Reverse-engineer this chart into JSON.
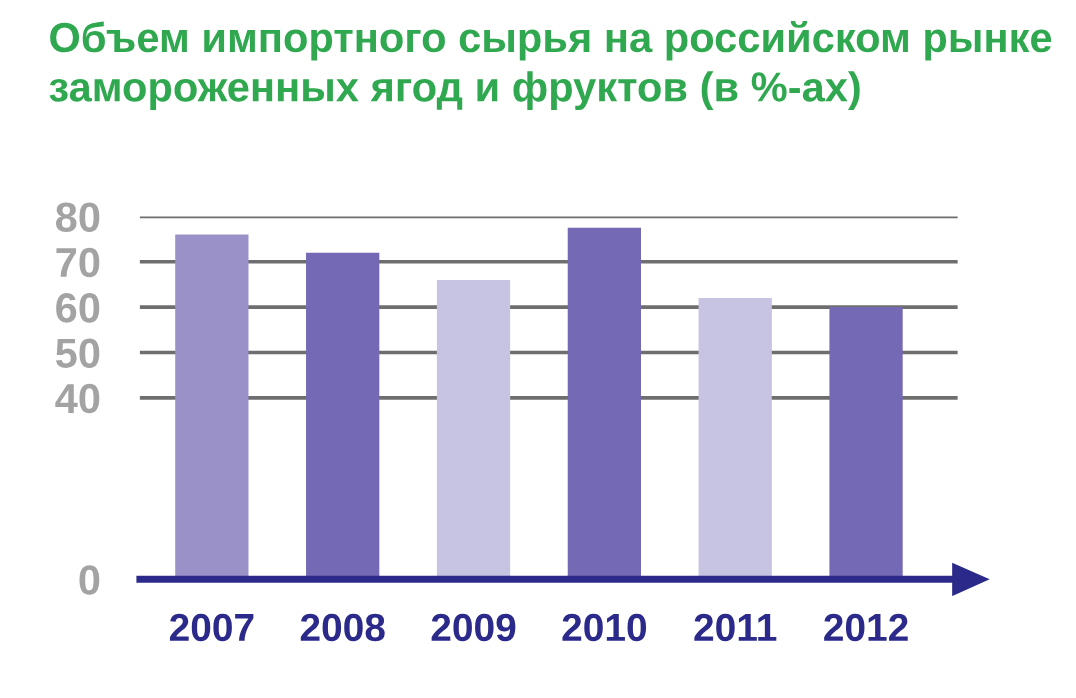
{
  "chart_data": {
    "type": "bar",
    "title": "Объем импортного сырья на российском рынке\nзамороженных ягод и фруктов (в %-ах)",
    "categories": [
      "2007",
      "2008",
      "2009",
      "2010",
      "2011",
      "2012"
    ],
    "values": [
      76,
      72,
      66,
      77.5,
      62,
      60
    ],
    "colors": [
      "#9b91c9",
      "#7469b4",
      "#c7c3e3",
      "#7469b4",
      "#c7c3e3",
      "#7469b4"
    ],
    "ylim": [
      0,
      80
    ],
    "yticks": [
      0,
      40,
      50,
      60,
      70,
      80
    ],
    "grid": "y"
  }
}
